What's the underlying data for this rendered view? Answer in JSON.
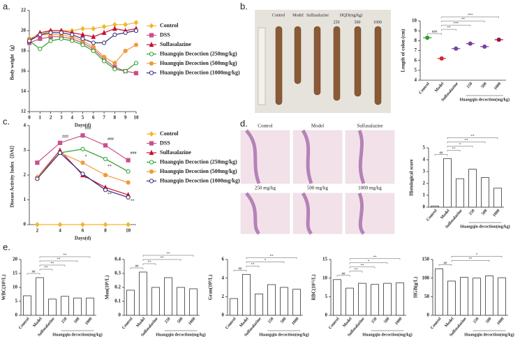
{
  "chart_data": [
    {
      "type": "line",
      "panel_label": "a.",
      "ylabel": "Body weight（g）",
      "xlabel": "Days(d)",
      "x": [
        0,
        1,
        2,
        3,
        4,
        5,
        6,
        7,
        8,
        9,
        10
      ],
      "xlim": [
        0,
        10
      ],
      "xticks": [
        0,
        1,
        2,
        3,
        4,
        5,
        6,
        7,
        8,
        9,
        10
      ],
      "ylim": [
        12,
        22
      ],
      "yticks": [
        12,
        14,
        16,
        18,
        20,
        22
      ],
      "series": [
        {
          "name": "Control",
          "color": "#f2b52b",
          "marker": "diamond",
          "values": [
            19.2,
            19.6,
            20.0,
            20.0,
            20.0,
            20.2,
            20.2,
            20.4,
            20.6,
            20.6,
            20.8
          ]
        },
        {
          "name": "DSS",
          "color": "#c9508a",
          "marker": "square",
          "values": [
            18.8,
            19.2,
            19.4,
            19.4,
            19.2,
            18.8,
            18.2,
            17.2,
            16.4,
            16.0,
            15.8
          ]
        },
        {
          "name": "Sulfasalazine",
          "color": "#c8102e",
          "marker": "triangle",
          "values": [
            19.0,
            19.8,
            20.0,
            20.0,
            19.8,
            19.6,
            19.4,
            19.8,
            20.2,
            20.0,
            20.2
          ]
        },
        {
          "name": "Huangqin Decoction (250mg/kg)",
          "color": "#2ca02c",
          "marker": "circle-open",
          "values": [
            19.0,
            18.2,
            19.0,
            19.2,
            19.0,
            18.6,
            18.0,
            17.0,
            16.2,
            16.0,
            16.8
          ]
        },
        {
          "name": "Huangqin Decoction (500mg/kg)",
          "color": "#f09a3a",
          "marker": "circle",
          "values": [
            19.2,
            19.6,
            19.6,
            19.6,
            19.4,
            19.0,
            18.4,
            17.4,
            16.8,
            18.0,
            18.6
          ]
        },
        {
          "name": "Huangqin Decoction (1000mg/kg)",
          "color": "#3b2a7a",
          "marker": "circle-open",
          "values": [
            19.0,
            19.6,
            19.8,
            19.8,
            19.6,
            19.2,
            18.8,
            18.8,
            19.6,
            19.8,
            20.0
          ]
        }
      ]
    },
    {
      "type": "dot",
      "panel_label": "b.",
      "ylabel": "Length of colon (cm)",
      "photo_labels": [
        "Control",
        "Model",
        "Sulfasalazine",
        "HQD(mg/kg)",
        "250",
        "500",
        "1000"
      ],
      "categories": [
        "Control",
        "Model",
        "Sulfasalazine",
        "250",
        "500",
        "1000"
      ],
      "values": [
        8.3,
        6.2,
        7.2,
        7.7,
        7.4,
        8.1
      ],
      "colors": [
        "#2ca02c",
        "#d62728",
        "#7b3fa0",
        "#7b3fa0",
        "#7b3fa0",
        "#a0103a"
      ],
      "ylim": [
        4,
        10
      ],
      "yticks": [
        4,
        5,
        6,
        7,
        8,
        9,
        10
      ],
      "group": {
        "label": "Huangqin decoction(mg/kg)",
        "categories": [
          "250",
          "500",
          "1000"
        ]
      },
      "brackets": [
        {
          "pair": [
            "Control",
            "Model"
          ],
          "label": "###"
        },
        {
          "pair": [
            "Model",
            "Sulfasalazine"
          ],
          "label": "**"
        },
        {
          "pair": [
            "Model",
            "250"
          ],
          "label": "***"
        },
        {
          "pair": [
            "Model",
            "500"
          ],
          "label": "**"
        },
        {
          "pair": [
            "Model",
            "1000"
          ],
          "label": "***"
        }
      ]
    },
    {
      "type": "line",
      "panel_label": "c.",
      "ylabel": "Disease Activity Index（DAI）",
      "xlabel": "Days(d)",
      "x": [
        2,
        4,
        6,
        8,
        10
      ],
      "xlim": [
        1.3,
        10.7
      ],
      "xticks": [
        2,
        4,
        6,
        8,
        10
      ],
      "ylim": [
        0,
        4
      ],
      "yticks": [
        0,
        1,
        2,
        3,
        4
      ],
      "annotations": [
        {
          "text": "###",
          "x": 4,
          "y": 3.55
        },
        {
          "text": "###",
          "x": 6,
          "y": 3.88
        },
        {
          "text": "###",
          "x": 8,
          "y": 3.45
        },
        {
          "text": "###",
          "x": 10,
          "y": 2.88
        },
        {
          "text": "*",
          "x": 6,
          "y": 2.75
        },
        {
          "text": "**",
          "x": 6,
          "y": 1.85
        },
        {
          "text": "**",
          "x": 8,
          "y": 2.35
        },
        {
          "text": "**",
          "x": 8,
          "y": 1.22
        },
        {
          "text": "**",
          "x": 10,
          "y": 0.95
        }
      ],
      "series": [
        {
          "name": "Control",
          "color": "#f2b52b",
          "marker": "diamond",
          "values": [
            0,
            0,
            0,
            0,
            0
          ]
        },
        {
          "name": "DSS",
          "color": "#c9508a",
          "marker": "square",
          "values": [
            2.5,
            3.3,
            3.6,
            3.2,
            2.6
          ]
        },
        {
          "name": "Sulfasalazine",
          "color": "#c8102e",
          "marker": "triangle",
          "values": [
            1.9,
            3.0,
            2.0,
            1.5,
            1.2
          ]
        },
        {
          "name": "Huangqin Decoction (250mg/kg)",
          "color": "#2ca02c",
          "marker": "circle-open",
          "values": [
            1.9,
            2.9,
            3.05,
            2.65,
            2.15
          ]
        },
        {
          "name": "Huangqin Decoction (500mg/kg)",
          "color": "#f09a3a",
          "marker": "circle",
          "values": [
            1.9,
            2.9,
            2.5,
            2.0,
            1.7
          ]
        },
        {
          "name": "Huangqin Decoction (1000mg/kg)",
          "color": "#3b2a7a",
          "marker": "circle-open",
          "values": [
            1.85,
            2.9,
            2.05,
            1.4,
            1.1
          ]
        }
      ]
    },
    {
      "type": "bar",
      "panel_label": "d.",
      "ylabel": "Histological score",
      "image_labels": [
        "Control",
        "Model",
        "Sulfasalazine",
        "250 mg/kg",
        "500 mg/kg",
        "1000 mg/kg"
      ],
      "categories": [
        "Control",
        "Model",
        "Sulfasalazine",
        "250",
        "500",
        "1000"
      ],
      "values": [
        0.1,
        4.1,
        2.4,
        3.2,
        2.5,
        1.6
      ],
      "ylim": [
        0,
        5
      ],
      "yticks": [
        0,
        1,
        2,
        3,
        4,
        5
      ],
      "group": {
        "label": "Huangqin decoction(mg/kg)",
        "categories": [
          "250",
          "500",
          "1000"
        ]
      },
      "brackets": [
        {
          "pair": [
            "Control",
            "Model"
          ],
          "label": "##"
        },
        {
          "pair": [
            "Model",
            "Sulfasalazine"
          ],
          "label": "**"
        },
        {
          "pair": [
            "Model",
            "250"
          ],
          "label": "*"
        },
        {
          "pair": [
            "Model",
            "500"
          ],
          "label": "**"
        },
        {
          "pair": [
            "Model",
            "1000"
          ],
          "label": "**"
        }
      ]
    },
    {
      "type": "bar",
      "panel_label": "e.",
      "ylabel": "WBC(10⁹/L)",
      "categories": [
        "Control",
        "Model",
        "Sulfasalazine",
        "250",
        "500",
        "1000"
      ],
      "values": [
        7.0,
        13.5,
        5.8,
        6.8,
        6.2,
        6.2
      ],
      "ylim": [
        0,
        20
      ],
      "yticks": [
        0,
        5,
        10,
        15,
        20
      ],
      "group": {
        "label": "Huangqin decoction(mg/kg)",
        "categories": [
          "250",
          "500",
          "1000"
        ]
      },
      "brackets": [
        {
          "pair": [
            "Control",
            "Model"
          ],
          "label": "##"
        },
        {
          "pair": [
            "Model",
            "Sulfasalazine"
          ],
          "label": "**"
        },
        {
          "pair": [
            "Model",
            "250"
          ],
          "label": "**"
        },
        {
          "pair": [
            "Model",
            "500"
          ],
          "label": "**"
        },
        {
          "pair": [
            "Model",
            "1000"
          ],
          "label": "**"
        }
      ]
    },
    {
      "type": "bar",
      "ylabel": "Mon(10⁹/L)",
      "categories": [
        "Control",
        "Model",
        "Sulfasalazine",
        "250",
        "500",
        "1000"
      ],
      "values": [
        0.18,
        0.31,
        0.2,
        0.27,
        0.2,
        0.19
      ],
      "ylim": [
        0,
        0.4
      ],
      "yticks": [
        0,
        0.1,
        0.2,
        0.3,
        0.4
      ],
      "group": {
        "label": "Huangqin decoction(mg/kg)",
        "categories": [
          "250",
          "500",
          "1000"
        ]
      },
      "brackets": [
        {
          "pair": [
            "Control",
            "Model"
          ],
          "label": "##"
        },
        {
          "pair": [
            "Model",
            "Sulfasalazine"
          ],
          "label": "**"
        },
        {
          "pair": [
            "Model",
            "500"
          ],
          "label": "**"
        },
        {
          "pair": [
            "Model",
            "1000"
          ],
          "label": "**"
        }
      ]
    },
    {
      "type": "bar",
      "ylabel": "Gran(10⁹/L)",
      "categories": [
        "Control",
        "Model",
        "Sulfasalazine",
        "250",
        "500",
        "1000"
      ],
      "values": [
        1.8,
        4.4,
        2.3,
        3.3,
        3.0,
        2.8
      ],
      "ylim": [
        0,
        6
      ],
      "yticks": [
        0,
        2,
        4,
        6
      ],
      "group": {
        "label": "Huangqin decoction(mg/kg)",
        "categories": [
          "250",
          "500",
          "1000"
        ]
      },
      "brackets": [
        {
          "pair": [
            "Control",
            "Model"
          ],
          "label": "##"
        },
        {
          "pair": [
            "Model",
            "Sulfasalazine"
          ],
          "label": "**"
        },
        {
          "pair": [
            "Model",
            "500"
          ],
          "label": "*"
        },
        {
          "pair": [
            "Model",
            "1000"
          ],
          "label": "**"
        }
      ]
    },
    {
      "type": "bar",
      "ylabel": "RBC(10¹²/L)",
      "categories": [
        "Control",
        "Model",
        "Sulfasalazine",
        "250",
        "500",
        "1000"
      ],
      "values": [
        9.6,
        7.3,
        8.6,
        8.3,
        8.6,
        8.7
      ],
      "ylim": [
        0,
        15
      ],
      "yticks": [
        0,
        5,
        10,
        15
      ],
      "group": {
        "label": "Huangqin decoction(mg/kg)",
        "categories": [
          "250",
          "500",
          "1000"
        ]
      },
      "brackets": [
        {
          "pair": [
            "Control",
            "Model"
          ],
          "label": "##"
        },
        {
          "pair": [
            "Model",
            "Sulfasalazine"
          ],
          "label": "**"
        },
        {
          "pair": [
            "Model",
            "250"
          ],
          "label": "**"
        },
        {
          "pair": [
            "Model",
            "500"
          ],
          "label": "*"
        },
        {
          "pair": [
            "Model",
            "1000"
          ],
          "label": "**"
        }
      ]
    },
    {
      "type": "bar",
      "ylabel": "HGB(g/L)",
      "categories": [
        "Control",
        "Model",
        "Sulfasalazine",
        "250",
        "500",
        "1000"
      ],
      "values": [
        125,
        92,
        102,
        100,
        106,
        101
      ],
      "ylim": [
        0,
        150
      ],
      "yticks": [
        0,
        50,
        100,
        150
      ],
      "group": {
        "label": "Huangqin decoction(mg/kg)",
        "categories": [
          "250",
          "500",
          "1000"
        ]
      },
      "brackets": [
        {
          "pair": [
            "Control",
            "Model"
          ],
          "label": "##"
        },
        {
          "pair": [
            "Model",
            "500"
          ],
          "label": "**"
        },
        {
          "pair": [
            "Model",
            "1000"
          ],
          "label": "*"
        }
      ]
    }
  ]
}
